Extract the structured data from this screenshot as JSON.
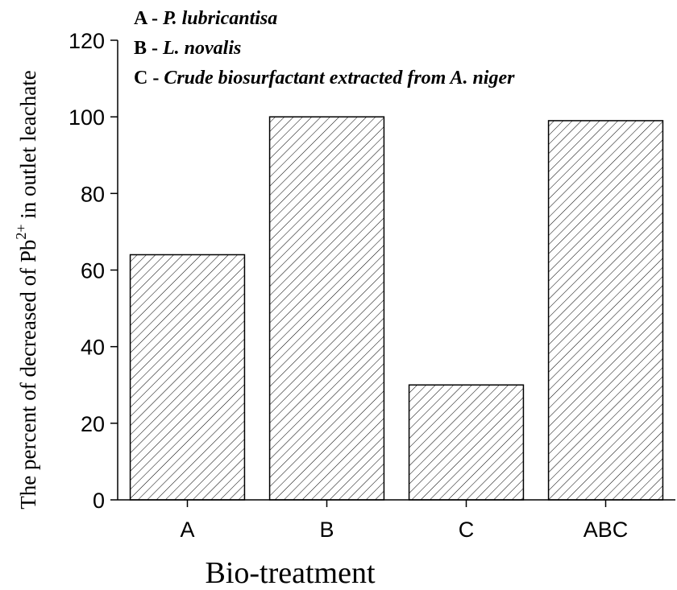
{
  "chart_data": {
    "type": "bar",
    "x_label": "Bio-treatment",
    "y_label": {
      "main": "The percent of decreased  of Pb",
      "sup": "2+",
      "end": " in outlet leachate"
    },
    "annotations": [
      {
        "label": "A -",
        "name": "P. lubricantisa"
      },
      {
        "label": "B -",
        "name": "L. novalis"
      },
      {
        "label": "C -",
        "name": "Crude biosurfactant extracted from A.  niger"
      }
    ],
    "categories": [
      "A",
      "B",
      "C",
      "ABC"
    ],
    "values": [
      64,
      100,
      30,
      99
    ],
    "color": "#000000",
    "hatch": "diagonal",
    "ylim": [
      0,
      120
    ],
    "yticks": [
      0,
      20,
      40,
      60,
      80,
      100,
      120
    ],
    "grid": false
  }
}
